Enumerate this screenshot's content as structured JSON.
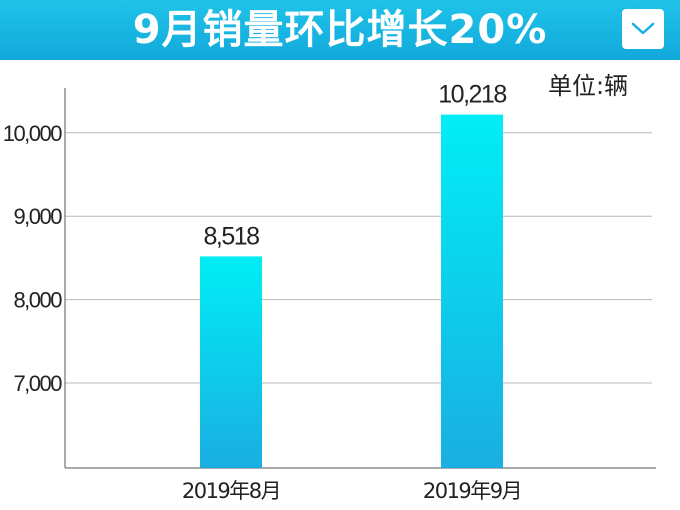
{
  "header": {
    "title": "9月销量环比增长20%",
    "dropdown_icon": "chevron-down-icon"
  },
  "colors": {
    "header_bg": "#1fc3e8",
    "bar_top": "#00eef5",
    "bar_bottom": "#1aaee2",
    "grid": "#b8b8b8"
  },
  "chart_data": {
    "type": "bar",
    "title": "9月销量环比增长20%",
    "unit_label": "单位:辆",
    "categories": [
      "2019年8月",
      "2019年9月"
    ],
    "values": [
      8518,
      10218
    ],
    "data_labels": [
      "8,518",
      "10,218"
    ],
    "yticks": [
      7000,
      8000,
      9000,
      10000
    ],
    "ytick_labels": [
      "7,000",
      "8,000",
      "9,000",
      "10,000"
    ],
    "ylim": [
      6000,
      10500
    ],
    "grid": true,
    "xlabel": "",
    "ylabel": ""
  }
}
